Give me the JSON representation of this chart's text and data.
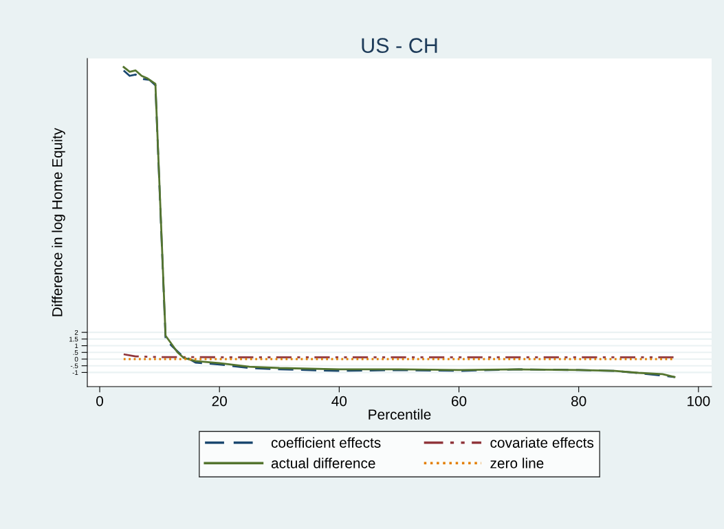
{
  "chart_data": {
    "type": "line",
    "title": "US - CH",
    "xlabel": "Percentile",
    "ylabel": "Difference in log Home Equity",
    "xlim": [
      -2.07,
      102.2
    ],
    "xticks": [
      0,
      20,
      40,
      60,
      80,
      100
    ],
    "ylim": [
      -2.06,
      22.5
    ],
    "yticks": [
      -1,
      {
        "value": -0.5,
        "label": "-.5"
      },
      0,
      {
        "value": 0.5,
        "label": ".5"
      },
      1,
      1.5,
      2
    ],
    "grid": "y",
    "legend": "bottom",
    "marker": "none",
    "series": [
      {
        "name": "coefficient effects",
        "color": "#1a476f",
        "line_style": "dashed",
        "x": [
          4,
          5,
          6,
          7,
          8.3,
          9.3,
          11,
          12,
          13.5,
          15,
          16,
          20,
          25,
          30,
          40,
          50,
          60,
          70,
          80,
          86,
          90,
          96
        ],
        "values": [
          21.6,
          21.2,
          21.3,
          20.98,
          20.9,
          20.5,
          1.55,
          1.0,
          0.36,
          0.0,
          -0.26,
          -0.4,
          -0.67,
          -0.77,
          -0.88,
          -0.82,
          -0.88,
          -0.77,
          -0.82,
          -0.88,
          -1.05,
          -1.34
        ]
      },
      {
        "name": "covariate effects",
        "color": "#90353b",
        "line_style": "dashdot",
        "x": [
          4,
          6,
          10,
          20,
          40,
          60,
          80,
          96
        ],
        "values": [
          0.36,
          0.2,
          0.15,
          0.14,
          0.13,
          0.13,
          0.13,
          0.13
        ]
      },
      {
        "name": "actual difference",
        "color": "#55752f",
        "line_style": "solid",
        "x": [
          4,
          5,
          6,
          7,
          8,
          9.3,
          11,
          12,
          13,
          14,
          16,
          20,
          25,
          30,
          40,
          50,
          60,
          70,
          80,
          86,
          90,
          94,
          96
        ],
        "values": [
          21.86,
          21.5,
          21.6,
          21.2,
          21.0,
          20.6,
          1.75,
          1.13,
          0.5,
          0.1,
          -0.15,
          -0.3,
          -0.57,
          -0.67,
          -0.77,
          -0.77,
          -0.82,
          -0.77,
          -0.82,
          -0.88,
          -1.03,
          -1.13,
          -1.34
        ]
      },
      {
        "name": "zero line",
        "color": "#e37e00",
        "line_style": "dotted",
        "x": [
          4,
          96
        ],
        "values": [
          0,
          0
        ]
      }
    ]
  }
}
